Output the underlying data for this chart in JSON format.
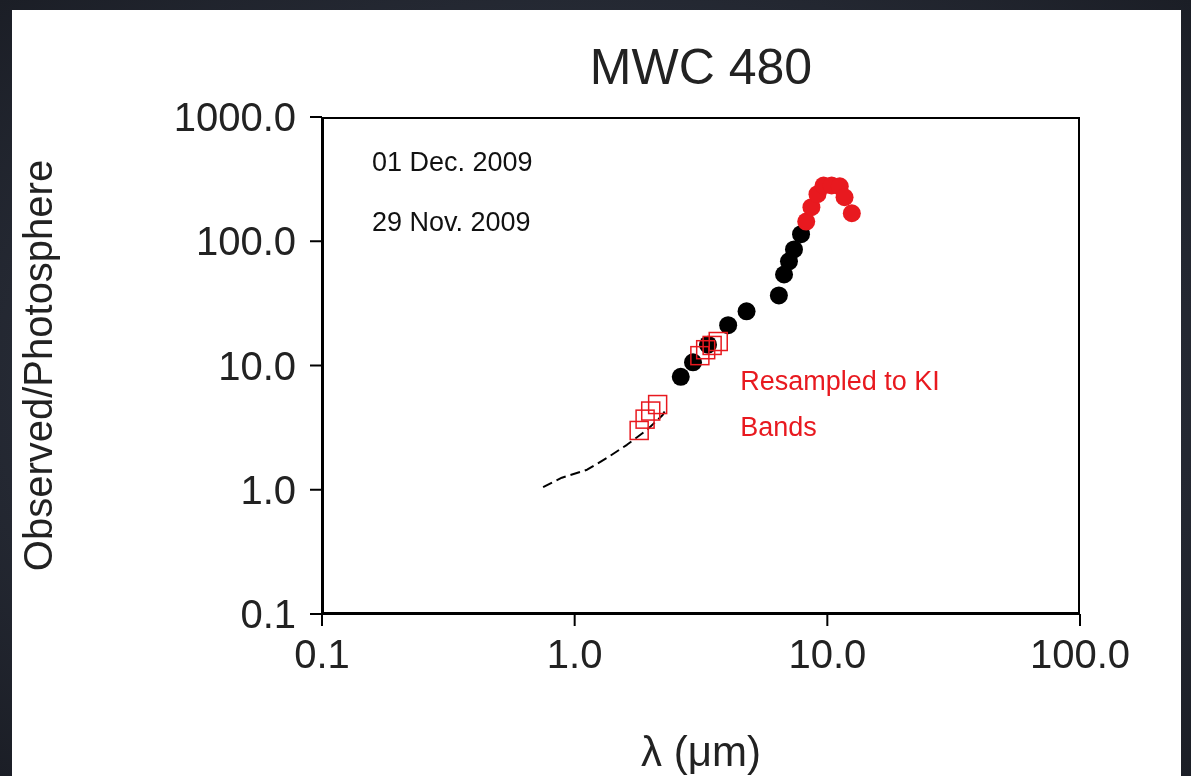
{
  "chart_data": {
    "type": "scatter",
    "title": "MWC 480",
    "xlabel": "λ (μm)",
    "ylabel": "Observed/Photosphere",
    "log": "xy",
    "xlim": [
      0.1,
      100
    ],
    "xticks": [
      {
        "value": 0.1,
        "label": "0.1"
      },
      {
        "value": 1,
        "label": "1.0"
      },
      {
        "value": 10,
        "label": "10.0"
      },
      {
        "value": 100,
        "label": "100.0"
      }
    ],
    "ylim": [
      0.1,
      1000
    ],
    "yticks": [
      {
        "value": 0.1,
        "label": "0.1"
      },
      {
        "value": 1,
        "label": "1.0"
      },
      {
        "value": 10,
        "label": "10.0"
      },
      {
        "value": 100,
        "label": "100.0"
      },
      {
        "value": 1000,
        "label": "1000.0"
      }
    ],
    "series": [
      {
        "type": "line",
        "color": "#000000",
        "marker": "none",
        "line_style": "dashed",
        "x": [
          0.75,
          0.89,
          1.12,
          1.34,
          1.61,
          1.94,
          2.23,
          2.29
        ],
        "values": [
          1.05,
          1.25,
          1.45,
          1.8,
          2.3,
          3.05,
          4.0,
          4.4
        ]
      },
      {
        "color": "#000000",
        "marker": "circle",
        "x": [
          2.63,
          2.94,
          3.37,
          4.05,
          4.79,
          6.43,
          6.74,
          7.05,
          7.38,
          7.87
        ],
        "values": [
          8.1,
          10.6,
          14.7,
          21.1,
          27.3,
          36.6,
          54,
          69,
          86,
          114
        ]
      },
      {
        "color": "#e8191f",
        "marker": "circle",
        "x": [
          8.25,
          8.65,
          9.14,
          9.66,
          10.4,
          11.2,
          11.7,
          12.5
        ],
        "values": [
          144,
          188,
          239,
          281,
          281,
          277,
          226,
          168
        ]
      },
      {
        "color": "#e8191f",
        "marker": "square",
        "x": [
          1.8,
          1.9,
          2.0,
          2.13,
          3.13,
          3.3,
          3.5,
          3.7
        ],
        "values": [
          3.0,
          3.7,
          4.3,
          4.85,
          12.0,
          13.4,
          14.5,
          15.6
        ]
      }
    ],
    "annotations": [
      "01 Dec. 2009",
      "29 Nov. 2009",
      {
        "text": "Resampled to KI Bands",
        "x": 3.7,
        "y": 15.6
      }
    ]
  }
}
